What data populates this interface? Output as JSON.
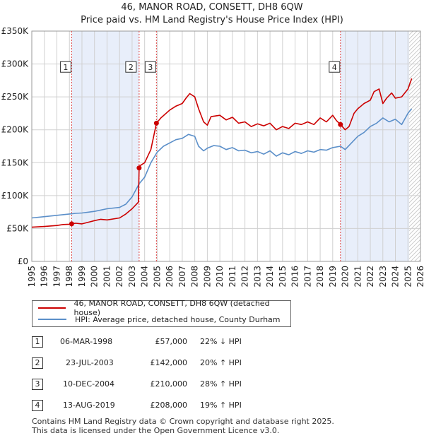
{
  "title_line1": "46, MANOR ROAD, CONSETT, DH8 6QW",
  "title_line2": "Price paid vs. HM Land Registry's House Price Index (HPI)",
  "colors": {
    "property": "#cc0000",
    "hpi": "#5b8fc9",
    "shade": "#e8eefa",
    "grid": "#d0d0d0",
    "marker_line": "#dd4444"
  },
  "chart_data": {
    "type": "line",
    "title": "Price paid vs. HM Land Registry's House Price Index (HPI)",
    "xlabel": "",
    "ylabel": "",
    "xlim": [
      1995,
      2026
    ],
    "ylim": [
      0,
      350000
    ],
    "x_ticks": [
      1995,
      1996,
      1997,
      1998,
      1999,
      2000,
      2001,
      2002,
      2003,
      2004,
      2005,
      2006,
      2007,
      2008,
      2009,
      2010,
      2011,
      2012,
      2013,
      2014,
      2015,
      2016,
      2017,
      2018,
      2019,
      2020,
      2021,
      2022,
      2023,
      2024,
      2025,
      2026
    ],
    "y_ticks": [
      0,
      50000,
      100000,
      150000,
      200000,
      250000,
      300000,
      350000
    ],
    "y_tick_labels": [
      "£0",
      "£50K",
      "£100K",
      "£150K",
      "£200K",
      "£250K",
      "£300K",
      "£350K"
    ],
    "shaded_periods": [
      [
        1998.18,
        2003.56
      ],
      [
        2019.62,
        2026
      ]
    ],
    "hatched_from": 2025.1,
    "series": [
      {
        "name": "46, MANOR ROAD, CONSETT, DH8 6QW (detached house)",
        "x": [
          1995,
          1996,
          1997,
          1997.5,
          1998.0,
          1998.18,
          1998.5,
          1999,
          2000,
          2000.5,
          2001,
          2002,
          2002.5,
          2003,
          2003.5,
          2003.56,
          2003.6,
          2004,
          2004.5,
          2004.94,
          2005.3,
          2006,
          2006.5,
          2007,
          2007.3,
          2007.6,
          2008,
          2008.3,
          2008.7,
          2009,
          2009.3,
          2010,
          2010.5,
          2011,
          2011.5,
          2012,
          2012.5,
          2013,
          2013.5,
          2014,
          2014.5,
          2015,
          2015.5,
          2016,
          2016.5,
          2017,
          2017.5,
          2018,
          2018.5,
          2019,
          2019.3,
          2019.62,
          2020,
          2020.3,
          2020.7,
          2021,
          2021.5,
          2022,
          2022.3,
          2022.7,
          2023,
          2023.3,
          2023.7,
          2024,
          2024.5,
          2025,
          2025.3
        ],
        "y": [
          52000,
          53000,
          54500,
          56000,
          56500,
          57000,
          58000,
          57000,
          62000,
          64000,
          63000,
          66000,
          72000,
          80000,
          90000,
          142000,
          145000,
          150000,
          170000,
          210000,
          218000,
          230000,
          236000,
          240000,
          248000,
          255000,
          250000,
          232000,
          212000,
          207000,
          220000,
          222000,
          215000,
          219000,
          210000,
          212000,
          205000,
          209000,
          206000,
          210000,
          200000,
          205000,
          202000,
          210000,
          208000,
          212000,
          208000,
          218000,
          212000,
          222000,
          214000,
          208000,
          200000,
          205000,
          225000,
          232000,
          240000,
          245000,
          258000,
          262000,
          240000,
          248000,
          256000,
          248000,
          250000,
          262000,
          278000
        ]
      },
      {
        "name": "HPI: Average price, detached house, County Durham",
        "x": [
          1995,
          1996,
          1997,
          1998,
          1998.5,
          1999,
          2000,
          2001,
          2002,
          2002.5,
          2003,
          2003.56,
          2004,
          2004.5,
          2005,
          2005.5,
          2006,
          2006.5,
          2007,
          2007.5,
          2008,
          2008.3,
          2008.7,
          2009,
          2009.5,
          2010,
          2010.5,
          2011,
          2011.5,
          2012,
          2012.5,
          2013,
          2013.5,
          2014,
          2014.5,
          2015,
          2015.5,
          2016,
          2016.5,
          2017,
          2017.5,
          2018,
          2018.5,
          2019,
          2019.62,
          2020,
          2020.5,
          2021,
          2021.5,
          2022,
          2022.5,
          2023,
          2023.5,
          2024,
          2024.5,
          2025,
          2025.3
        ],
        "y": [
          66000,
          68000,
          70000,
          72000,
          73000,
          73500,
          76000,
          80000,
          82000,
          87000,
          98000,
          118000,
          128000,
          150000,
          166000,
          175000,
          180000,
          185000,
          187000,
          193000,
          190000,
          175000,
          168000,
          172000,
          176000,
          175000,
          170000,
          173000,
          168000,
          169000,
          165000,
          167000,
          163000,
          168000,
          160000,
          165000,
          162000,
          167000,
          164000,
          168000,
          166000,
          170000,
          169000,
          173000,
          175000,
          170000,
          180000,
          190000,
          196000,
          205000,
          210000,
          218000,
          212000,
          216000,
          208000,
          225000,
          232000
        ]
      }
    ],
    "sales": [
      {
        "id": "1",
        "x": 1998.18,
        "y": 57000
      },
      {
        "id": "2",
        "x": 2003.56,
        "y": 142000
      },
      {
        "id": "3",
        "x": 2004.94,
        "y": 210000
      },
      {
        "id": "4",
        "x": 2019.62,
        "y": 208000
      }
    ]
  },
  "legend": {
    "property_label": "46, MANOR ROAD, CONSETT, DH8 6QW (detached house)",
    "hpi_label": "HPI: Average price, detached house, County Durham"
  },
  "transactions": [
    {
      "id": "1",
      "date": "06-MAR-1998",
      "price": "£57,000",
      "hpi": "22% ↓ HPI"
    },
    {
      "id": "2",
      "date": "23-JUL-2003",
      "price": "£142,000",
      "hpi": "20% ↑ HPI"
    },
    {
      "id": "3",
      "date": "10-DEC-2004",
      "price": "£210,000",
      "hpi": "28% ↑ HPI"
    },
    {
      "id": "4",
      "date": "13-AUG-2019",
      "price": "£208,000",
      "hpi": "19% ↑ HPI"
    }
  ],
  "footer": {
    "line1": "Contains HM Land Registry data © Crown copyright and database right 2025.",
    "line2": "This data is licensed under the Open Government Licence v3.0."
  }
}
